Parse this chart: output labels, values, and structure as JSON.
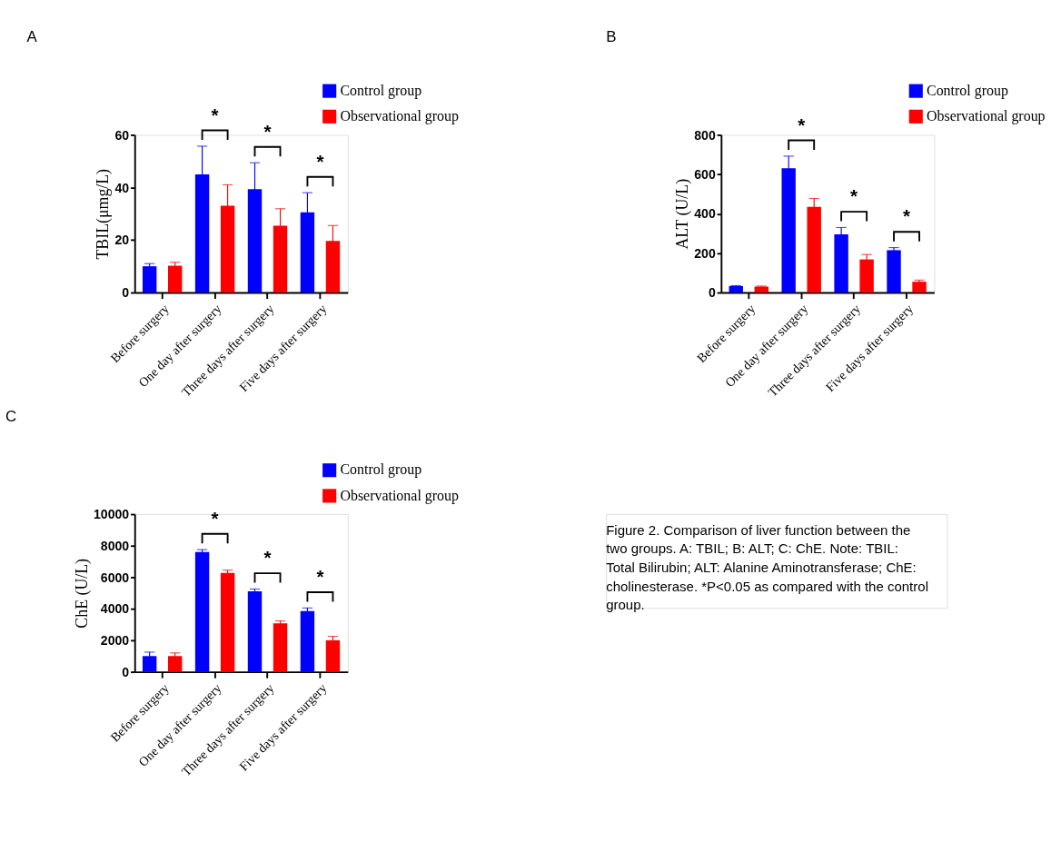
{
  "chart_data": [
    {
      "type": "bar",
      "title": "A",
      "ylabel": "TBIL(μmg/L)",
      "categories": [
        "Before surgery",
        "One day after surgery",
        "Three days after surgery",
        "Five days after surgery"
      ],
      "ylim": [
        0,
        60
      ],
      "yticks": [
        0,
        20,
        40,
        60
      ],
      "grid": false,
      "legend": "top right",
      "series": [
        {
          "name": "Control group",
          "color": "#0000ff",
          "values": [
            10,
            45,
            39.3,
            30.5
          ],
          "errors": [
            1,
            10.7,
            10.1,
            7.5
          ]
        },
        {
          "name": "Observational group",
          "color": "#ff0000",
          "values": [
            10.2,
            33,
            25.4,
            19.6
          ],
          "errors": [
            1.3,
            8,
            6.5,
            5.9
          ]
        }
      ],
      "annotations": [
        "*",
        "*",
        "*"
      ]
    },
    {
      "type": "bar",
      "title": "B",
      "ylabel": "ALT (U/L)",
      "categories": [
        "Before surgery",
        "One day after surgery",
        "Three days after surgery",
        "Five days after surgery"
      ],
      "ylim": [
        0,
        800
      ],
      "yticks": [
        0,
        200,
        400,
        600,
        800
      ],
      "grid": false,
      "legend": "top right",
      "series": [
        {
          "name": "Control group",
          "color": "#0000ff",
          "values": [
            33,
            630,
            295,
            215
          ],
          "errors": [
            2,
            62,
            35,
            13
          ]
        },
        {
          "name": "Observational group",
          "color": "#ff0000",
          "values": [
            30,
            435,
            168,
            55
          ],
          "errors": [
            3,
            42,
            25,
            8
          ]
        }
      ],
      "annotations": [
        "*",
        "*",
        "*"
      ]
    },
    {
      "type": "bar",
      "title": "C",
      "ylabel": "ChE (U/L)",
      "categories": [
        "Before surgery",
        "One day after surgery",
        "Three days after surgery",
        "Five days after surgery"
      ],
      "ylim": [
        0,
        10000
      ],
      "yticks": [
        0,
        2000,
        4000,
        6000,
        8000,
        10000
      ],
      "grid": false,
      "legend": "top right",
      "series": [
        {
          "name": "Control group",
          "color": "#0000ff",
          "values": [
            1000,
            7600,
            5100,
            3850
          ],
          "errors": [
            250,
            150,
            150,
            200
          ]
        },
        {
          "name": "Observational group",
          "color": "#ff0000",
          "values": [
            1000,
            6280,
            3080,
            2000
          ],
          "errors": [
            200,
            170,
            150,
            250
          ]
        }
      ],
      "annotations": [
        "*",
        "*",
        "*",
        "Figure 2. Comparison of liver function between the two groups. A: TBIL; B: ALT; C: ChE. Note: TBIL: Total Bilirubin; ALT: Alanine Aminotransferase; ChE: cholinesterase. *P<0.05 as compared with the control group."
      ]
    }
  ]
}
